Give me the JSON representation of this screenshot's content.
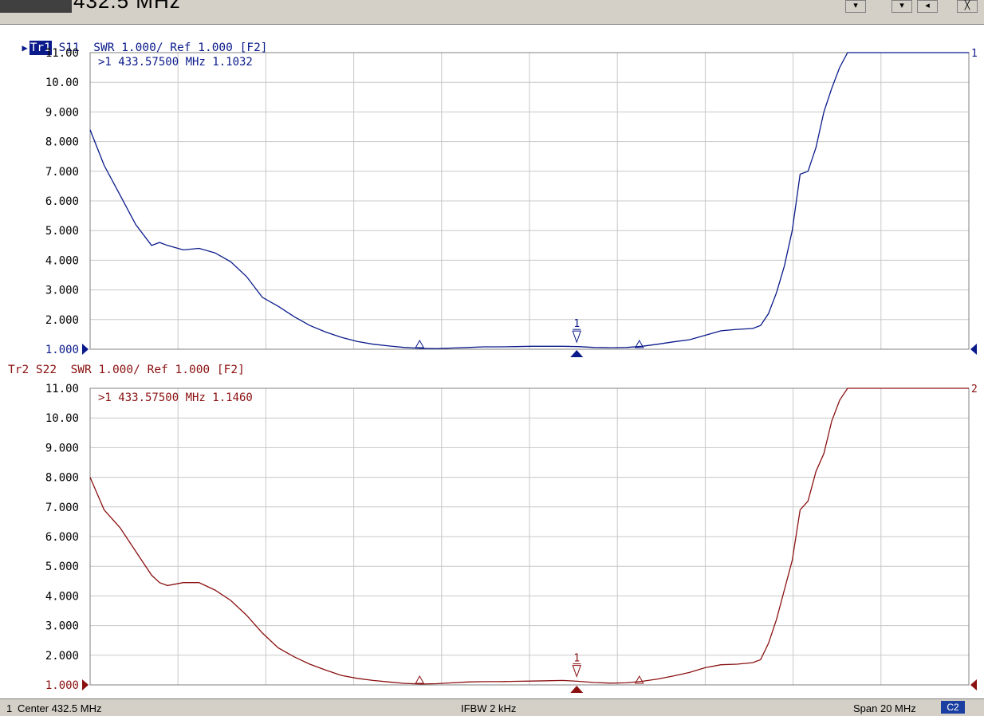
{
  "top_bar": {
    "frequency_text": "432.5 MHz",
    "buttons": [
      "▾",
      "▾",
      "◂",
      "╳"
    ]
  },
  "trace1": {
    "badge": "Tr1",
    "header": " S11  SWR 1.000/ Ref 1.000 [F2]",
    "color": "#0a1a8a",
    "marker_readout": ">1   433.57500 MHz   1.1032",
    "trace_end_label": "1",
    "marker_label": "1"
  },
  "trace2": {
    "header": "Tr2 S22  SWR 1.000/ Ref 1.000 [F2]",
    "color": "#8b1010",
    "marker_readout": ">1   433.57500 MHz   1.1460",
    "trace_end_label": "2",
    "marker_label": "1"
  },
  "status_bar": {
    "channel": "1",
    "center": "Center 432.5 MHz",
    "ifbw": "IFBW 2 kHz",
    "span": "Span 20 MHz",
    "badge": "C2"
  },
  "chart_data": [
    {
      "type": "line",
      "trace": "Tr1 S11",
      "yticks": [
        "11.00",
        "10.00",
        "9.000",
        "8.000",
        "7.000",
        "6.000",
        "5.000",
        "4.000",
        "3.000",
        "2.000",
        "1.000"
      ],
      "ylim": [
        1,
        11
      ],
      "xlim": [
        422.5,
        442.5
      ],
      "grid": true,
      "marker": {
        "x": 433.575,
        "y": 1.1032
      },
      "delta_markers": [
        430.0,
        435.0
      ],
      "series": [
        {
          "x": [
            422.5,
            422.82,
            423.18,
            423.54,
            423.9,
            424.08,
            424.26,
            424.62,
            424.98,
            425.34,
            425.7,
            426.06,
            426.42,
            426.78,
            427.14,
            427.5,
            427.86,
            428.22,
            428.58,
            428.94,
            429.3,
            429.66,
            430.02,
            430.38,
            430.74,
            431.1,
            431.46,
            431.82,
            432.18,
            432.54,
            432.9,
            433.26,
            433.62,
            433.98,
            434.34,
            434.7,
            435.06,
            435.42,
            435.78,
            436.14,
            436.5,
            436.86,
            437.22,
            437.58,
            437.76,
            437.94,
            438.12,
            438.3,
            438.48,
            438.66,
            438.84,
            439.02,
            439.2,
            439.38,
            439.56,
            439.74,
            439.92,
            440.1,
            440.28,
            440.46,
            440.64,
            442.5
          ],
          "values": [
            8.4,
            7.2,
            6.2,
            5.2,
            4.5,
            4.6,
            4.5,
            4.35,
            4.4,
            4.25,
            3.95,
            3.45,
            2.75,
            2.45,
            2.1,
            1.8,
            1.58,
            1.4,
            1.26,
            1.17,
            1.11,
            1.06,
            1.03,
            1.02,
            1.04,
            1.06,
            1.08,
            1.08,
            1.09,
            1.1,
            1.1,
            1.1,
            1.09,
            1.06,
            1.05,
            1.06,
            1.1,
            1.17,
            1.25,
            1.32,
            1.47,
            1.62,
            1.67,
            1.7,
            1.8,
            2.2,
            2.9,
            3.8,
            5.0,
            6.9,
            7.0,
            7.8,
            9.0,
            9.8,
            10.5,
            11.0,
            11.0,
            11.0,
            11.0,
            11.0,
            11.0,
            11.0
          ]
        }
      ]
    },
    {
      "type": "line",
      "trace": "Tr2 S22",
      "yticks": [
        "11.00",
        "10.00",
        "9.000",
        "8.000",
        "7.000",
        "6.000",
        "5.000",
        "4.000",
        "3.000",
        "2.000",
        "1.000"
      ],
      "ylim": [
        1,
        11
      ],
      "xlim": [
        422.5,
        442.5
      ],
      "grid": true,
      "marker": {
        "x": 433.575,
        "y": 1.146
      },
      "delta_markers": [
        430.0,
        435.0
      ],
      "series": [
        {
          "x": [
            422.5,
            422.82,
            423.18,
            423.54,
            423.9,
            424.08,
            424.26,
            424.62,
            424.98,
            425.34,
            425.7,
            426.06,
            426.42,
            426.78,
            427.14,
            427.5,
            427.86,
            428.22,
            428.58,
            428.94,
            429.3,
            429.66,
            430.02,
            430.38,
            430.74,
            431.1,
            431.46,
            431.82,
            432.18,
            432.54,
            432.9,
            433.26,
            433.62,
            433.98,
            434.34,
            434.7,
            435.06,
            435.42,
            435.78,
            436.14,
            436.5,
            436.86,
            437.22,
            437.58,
            437.76,
            437.94,
            438.12,
            438.3,
            438.48,
            438.66,
            438.84,
            439.02,
            439.2,
            439.38,
            439.56,
            439.74,
            439.92,
            440.1,
            440.28,
            440.46,
            440.64,
            442.5
          ],
          "values": [
            8.0,
            6.9,
            6.3,
            5.5,
            4.7,
            4.45,
            4.35,
            4.45,
            4.45,
            4.2,
            3.85,
            3.35,
            2.75,
            2.25,
            1.95,
            1.7,
            1.5,
            1.32,
            1.22,
            1.15,
            1.1,
            1.05,
            1.03,
            1.04,
            1.07,
            1.1,
            1.11,
            1.11,
            1.12,
            1.13,
            1.14,
            1.15,
            1.12,
            1.08,
            1.06,
            1.07,
            1.12,
            1.2,
            1.3,
            1.42,
            1.58,
            1.68,
            1.7,
            1.75,
            1.85,
            2.4,
            3.2,
            4.2,
            5.2,
            6.9,
            7.2,
            8.2,
            8.8,
            9.9,
            10.6,
            11.0,
            11.0,
            11.0,
            11.0,
            11.0,
            11.0,
            11.0
          ]
        }
      ]
    }
  ]
}
